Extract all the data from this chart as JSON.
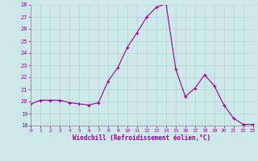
{
  "hours": [
    0,
    1,
    2,
    3,
    4,
    5,
    6,
    7,
    8,
    9,
    10,
    11,
    12,
    13,
    14,
    15,
    16,
    17,
    18,
    19,
    20,
    21,
    22,
    23
  ],
  "values": [
    19.8,
    20.1,
    20.1,
    20.1,
    19.9,
    19.8,
    19.7,
    19.9,
    21.7,
    22.8,
    24.5,
    25.7,
    27.0,
    27.8,
    28.1,
    22.7,
    20.4,
    21.1,
    22.2,
    21.3,
    19.7,
    18.6,
    18.1,
    18.1
  ],
  "xlabel": "Windchill (Refroidissement éolien,°C)",
  "ylim": [
    18,
    28
  ],
  "xlim": [
    0,
    23
  ],
  "yticks": [
    18,
    19,
    20,
    21,
    22,
    23,
    24,
    25,
    26,
    27,
    28
  ],
  "xticks": [
    0,
    1,
    2,
    3,
    4,
    5,
    6,
    7,
    8,
    9,
    10,
    11,
    12,
    13,
    14,
    15,
    16,
    17,
    18,
    19,
    20,
    21,
    22,
    23
  ],
  "line_color": "#990099",
  "marker": "+",
  "bg_color": "#cce8e8",
  "grid_color": "#b0d0d0",
  "tick_color": "#990099",
  "label_color": "#990099"
}
